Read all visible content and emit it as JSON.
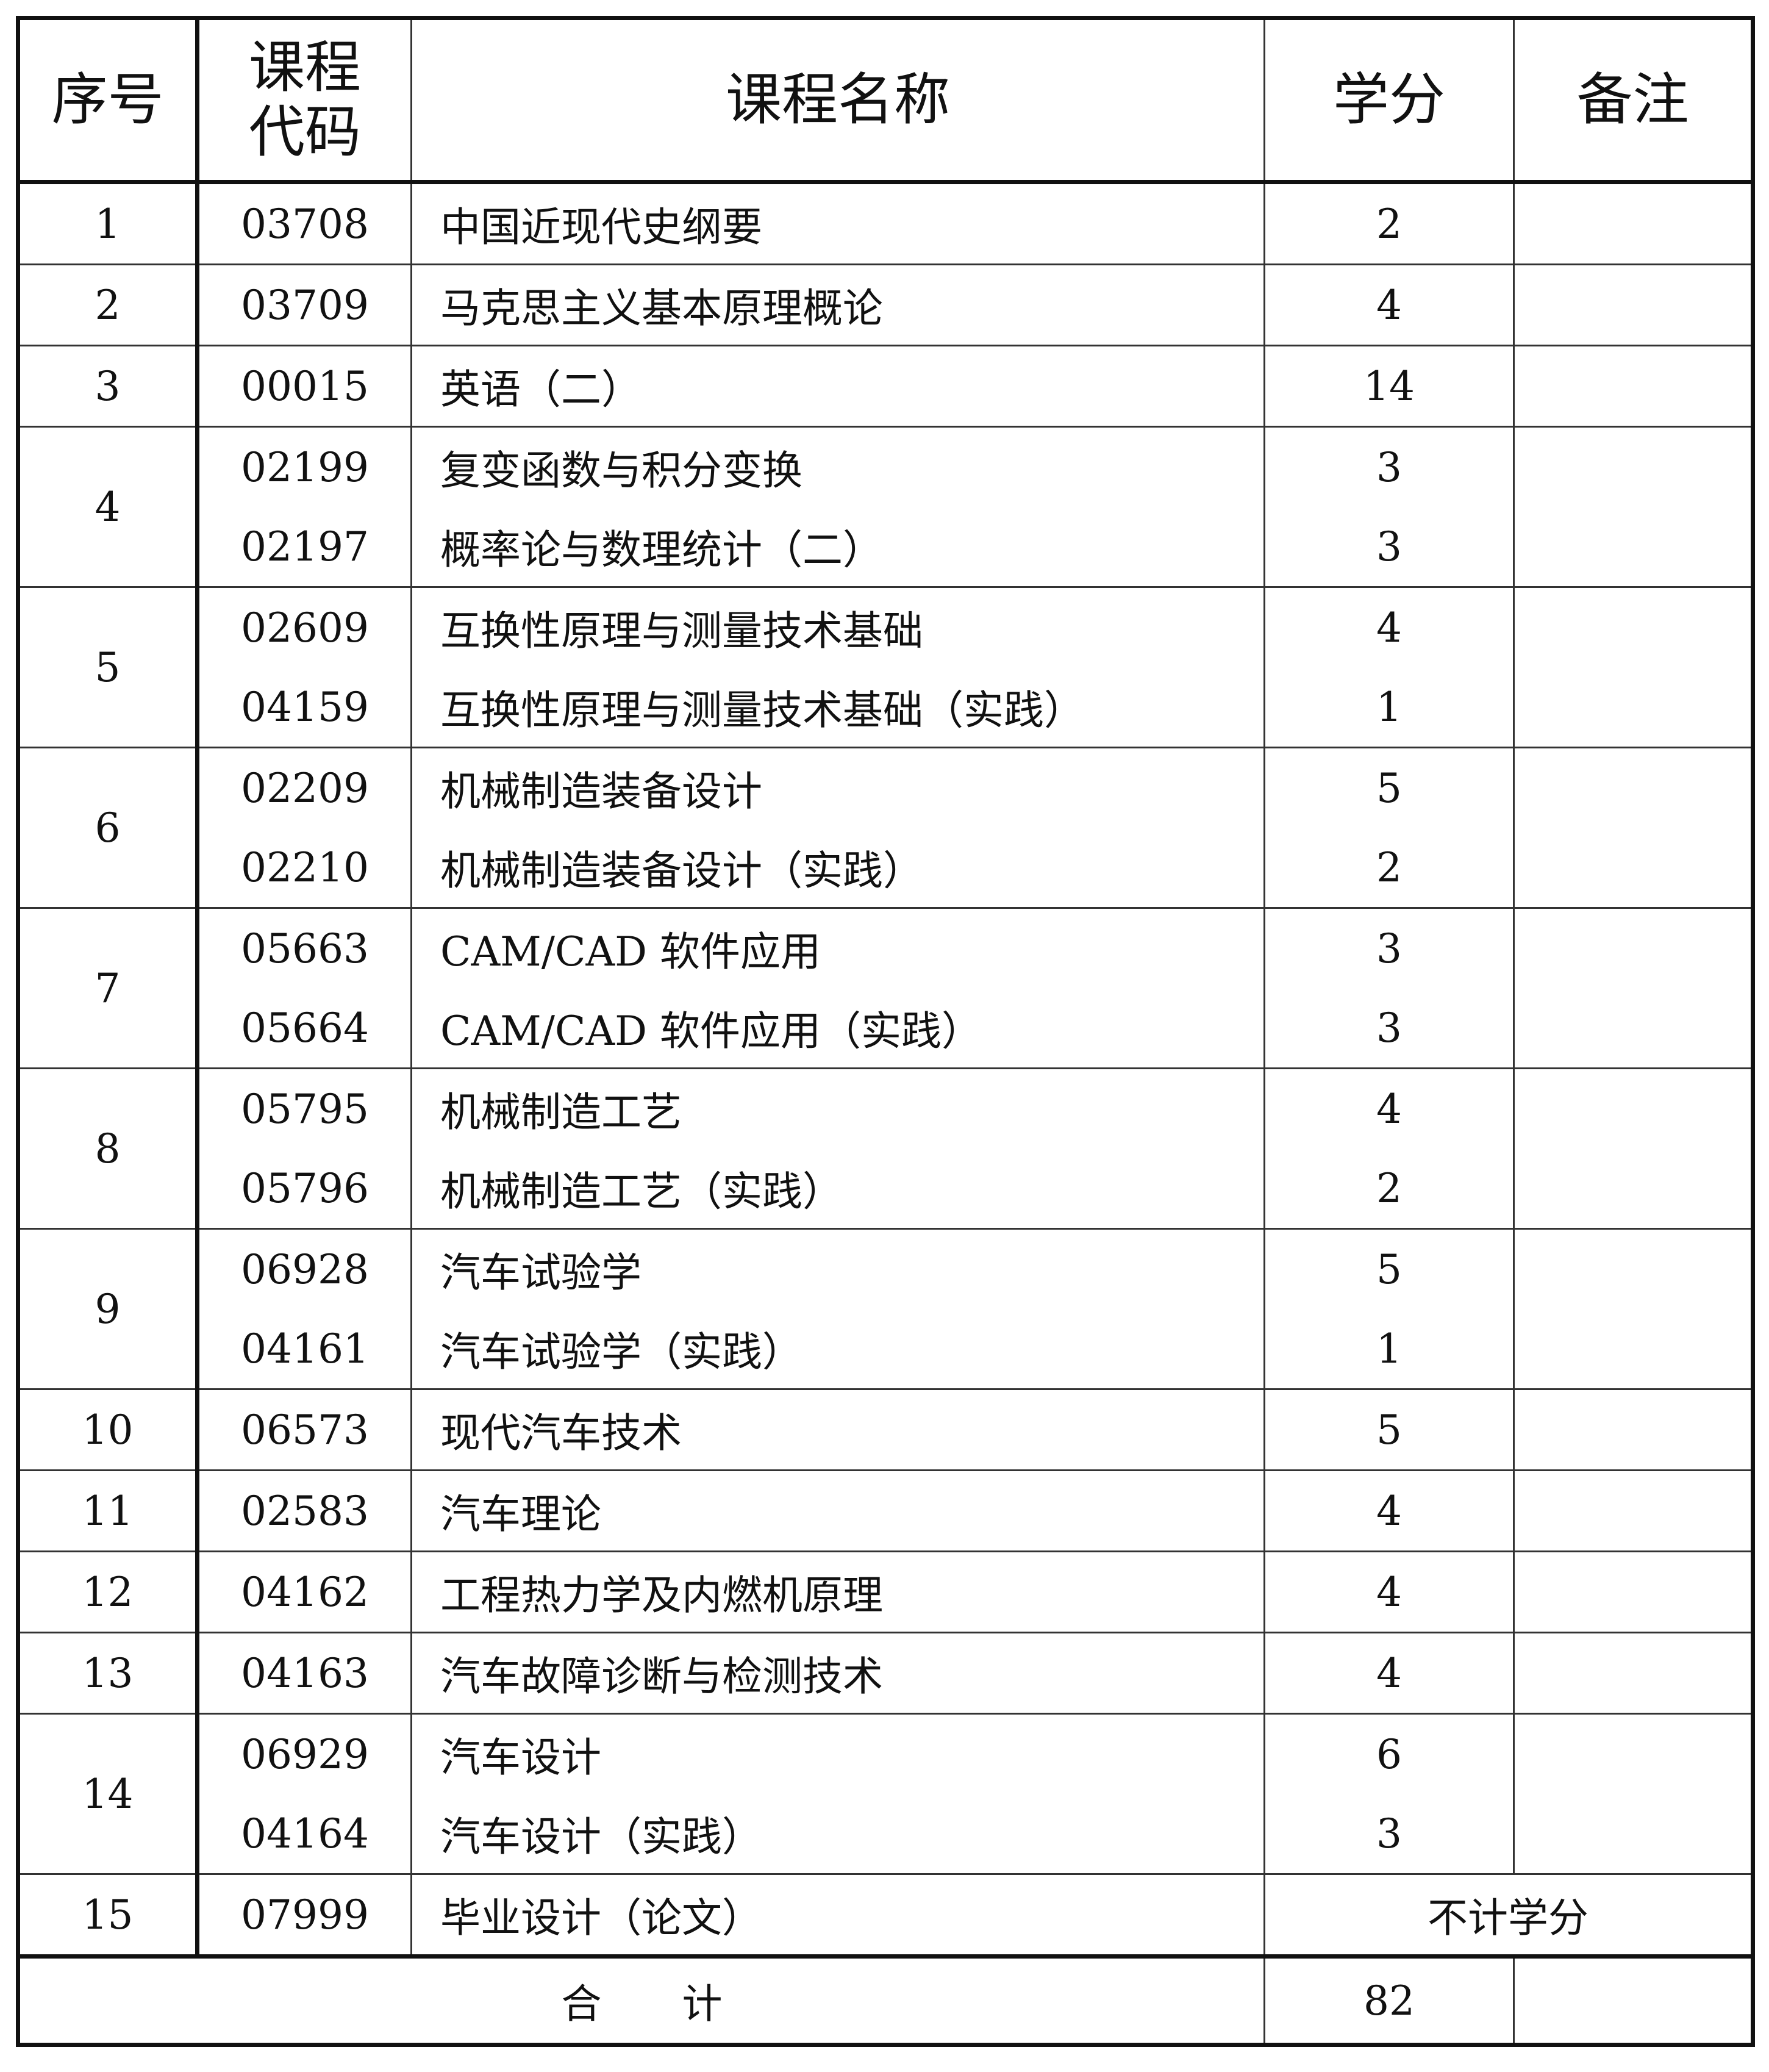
{
  "headers": {
    "index": "序号",
    "code": "课程\n代码",
    "name": "课程名称",
    "credit": "学分",
    "note": "备注"
  },
  "groups": [
    {
      "index": "1",
      "courses": [
        {
          "code": "03708",
          "name": "中国近现代史纲要",
          "credit": "2"
        }
      ]
    },
    {
      "index": "2",
      "courses": [
        {
          "code": "03709",
          "name": "马克思主义基本原理概论",
          "credit": "4"
        }
      ]
    },
    {
      "index": "3",
      "courses": [
        {
          "code": "00015",
          "name": "英语（二）",
          "credit": "14"
        }
      ]
    },
    {
      "index": "4",
      "courses": [
        {
          "code": "02199",
          "name": "复变函数与积分变换",
          "credit": "3"
        },
        {
          "code": "02197",
          "name": "概率论与数理统计（二）",
          "credit": "3"
        }
      ]
    },
    {
      "index": "5",
      "courses": [
        {
          "code": "02609",
          "name": "互换性原理与测量技术基础",
          "credit": "4"
        },
        {
          "code": "04159",
          "name": "互换性原理与测量技术基础（实践）",
          "credit": "1"
        }
      ]
    },
    {
      "index": "6",
      "courses": [
        {
          "code": "02209",
          "name": "机械制造装备设计",
          "credit": "5"
        },
        {
          "code": "02210",
          "name": "机械制造装备设计（实践）",
          "credit": "2"
        }
      ]
    },
    {
      "index": "7",
      "courses": [
        {
          "code": "05663",
          "name": "CAM/CAD 软件应用",
          "credit": "3"
        },
        {
          "code": "05664",
          "name": "CAM/CAD 软件应用（实践）",
          "credit": "3"
        }
      ]
    },
    {
      "index": "8",
      "courses": [
        {
          "code": "05795",
          "name": "机械制造工艺",
          "credit": "4"
        },
        {
          "code": "05796",
          "name": "机械制造工艺（实践）",
          "credit": "2"
        }
      ]
    },
    {
      "index": "9",
      "courses": [
        {
          "code": "06928",
          "name": "汽车试验学",
          "credit": "5"
        },
        {
          "code": "04161",
          "name": "汽车试验学（实践）",
          "credit": "1"
        }
      ]
    },
    {
      "index": "10",
      "courses": [
        {
          "code": "06573",
          "name": "现代汽车技术",
          "credit": "5"
        }
      ]
    },
    {
      "index": "11",
      "courses": [
        {
          "code": "02583",
          "name": "汽车理论",
          "credit": "4"
        }
      ]
    },
    {
      "index": "12",
      "courses": [
        {
          "code": "04162",
          "name": "工程热力学及内燃机原理",
          "credit": "4"
        }
      ]
    },
    {
      "index": "13",
      "courses": [
        {
          "code": "04163",
          "name": "汽车故障诊断与检测技术",
          "credit": "4"
        }
      ]
    },
    {
      "index": "14",
      "courses": [
        {
          "code": "06929",
          "name": "汽车设计",
          "credit": "6"
        },
        {
          "code": "04164",
          "name": "汽车设计（实践）",
          "credit": "3"
        }
      ]
    },
    {
      "index": "15",
      "courses": [
        {
          "code": "07999",
          "name": "毕业设计（论文）",
          "credit_merged": "不计学分"
        }
      ]
    }
  ],
  "total": {
    "label": "合　　计",
    "credit": "82"
  }
}
